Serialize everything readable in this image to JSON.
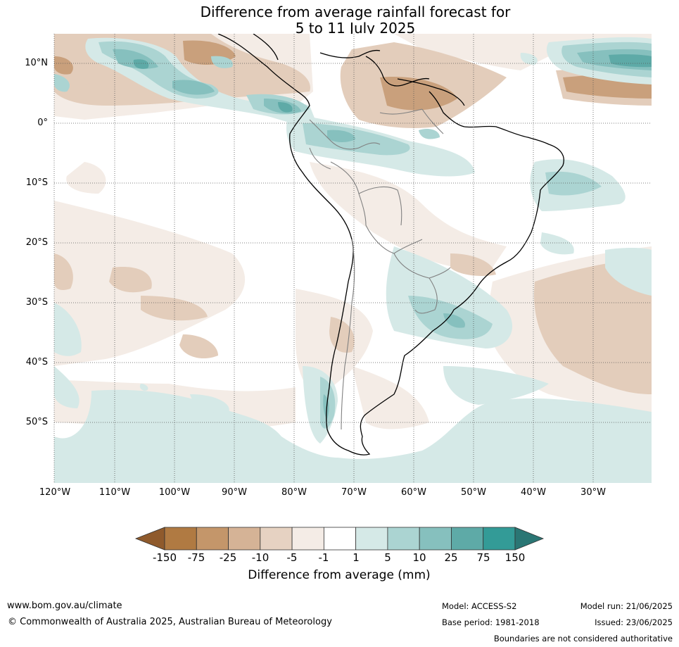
{
  "title": {
    "line1": "Difference from average rainfall forecast for",
    "line2": "5 to 11 July 2025"
  },
  "map": {
    "lat_labels": [
      "10°N",
      "0°",
      "10°S",
      "20°S",
      "30°S",
      "40°S",
      "50°S"
    ],
    "lon_labels": [
      "120°W",
      "110°W",
      "100°W",
      "90°W",
      "80°W",
      "70°W",
      "60°W",
      "50°W",
      "40°W",
      "30°W"
    ]
  },
  "colorbar": {
    "title": "Difference from average (mm)",
    "tick_labels": [
      "-150",
      "-75",
      "-25",
      "-10",
      "-5",
      "-1",
      "1",
      "5",
      "10",
      "25",
      "75",
      "150"
    ],
    "colors": [
      "#8f5a2c",
      "#b07a42",
      "#c4966a",
      "#d5b396",
      "#e6d2c2",
      "#f4ece6",
      "#ffffff",
      "#d5e9e7",
      "#abd4d2",
      "#86c0be",
      "#5eaaa7",
      "#339b97",
      "#2a7674"
    ]
  },
  "footer": {
    "website": "www.bom.gov.au/climate",
    "copyright": "© Commonwealth of Australia 2025, Australian Bureau of Meteorology",
    "model": "Model: ACCESS-S2",
    "base_period": "Base period: 1981-2018",
    "model_run": "Model run: 21/06/2025",
    "issued": "Issued: 23/06/2025",
    "disclaimer": "Boundaries are not considered authoritative"
  }
}
